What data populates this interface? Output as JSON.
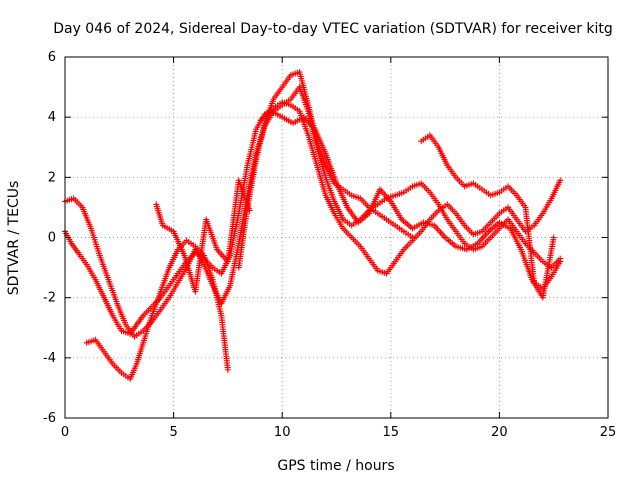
{
  "chart_data": {
    "type": "scatter",
    "title": "Day 046 of 2024, Sidereal Day-to-day VTEC variation (SDTVAR) for receiver kitg",
    "xlabel": "GPS time / hours",
    "ylabel": "SDTVAR / TECUs",
    "xlim": [
      0,
      25
    ],
    "ylim": [
      -6,
      6
    ],
    "xticks": [
      0,
      5,
      10,
      15,
      20,
      25
    ],
    "yticks": [
      -6,
      -4,
      -2,
      0,
      2,
      4,
      6
    ],
    "grid": true,
    "marker": "+",
    "color": "#ff0000",
    "series": [
      {
        "x": [
          0.0,
          0.3,
          0.6,
          1.0,
          1.4,
          1.8,
          2.2,
          2.6,
          3.0,
          3.3,
          3.6,
          4.0,
          4.4,
          4.8,
          5.2,
          5.6,
          6.0,
          6.4,
          6.8,
          7.2,
          7.6,
          8.0,
          8.4,
          8.8,
          9.2,
          9.6,
          10.0,
          10.4,
          10.8,
          11.2,
          11.6,
          12.0,
          12.4,
          12.8,
          13.2,
          13.6,
          14.0,
          14.4,
          14.8,
          15.2,
          15.6,
          16.0,
          16.4,
          16.8,
          17.2,
          17.6,
          18.0,
          18.4,
          18.8,
          19.2,
          19.6,
          20.0,
          20.4,
          20.8,
          21.2,
          21.6,
          22.0,
          22.4,
          22.8
        ],
        "y": [
          0.2,
          -0.2,
          -0.5,
          -0.9,
          -1.4,
          -2.0,
          -2.6,
          -3.1,
          -3.2,
          -2.9,
          -2.6,
          -2.3,
          -2.0,
          -1.6,
          -1.2,
          -0.8,
          -0.5,
          -0.7,
          -1.0,
          -1.2,
          -0.6,
          0.8,
          2.4,
          3.6,
          4.1,
          4.3,
          4.5,
          4.4,
          4.2,
          3.4,
          2.4,
          1.4,
          0.8,
          0.3,
          0.0,
          -0.3,
          -0.7,
          -1.1,
          -1.2,
          -0.8,
          -0.4,
          -0.1,
          0.2,
          0.6,
          0.9,
          1.1,
          0.8,
          0.4,
          0.1,
          0.2,
          0.5,
          0.8,
          1.0,
          0.6,
          0.2,
          0.4,
          0.8,
          1.3,
          1.9
        ]
      },
      {
        "x": [
          0.0,
          0.4,
          0.8,
          1.2,
          1.6,
          2.0,
          2.4,
          2.8,
          3.2,
          3.6,
          4.0,
          4.4,
          4.8,
          5.2,
          5.6,
          6.0,
          6.4,
          6.8,
          7.2,
          7.6,
          8.0,
          8.4,
          8.8,
          9.2,
          9.6,
          10.0,
          10.4,
          10.8,
          11.2,
          11.6,
          12.0,
          12.4,
          12.8,
          13.2,
          13.6,
          14.0,
          14.4,
          14.8,
          15.2,
          15.6,
          16.0,
          16.4,
          16.8,
          17.2,
          17.6,
          18.0,
          18.4,
          18.8,
          19.2,
          19.6,
          20.0,
          20.4,
          20.8,
          21.2,
          21.6,
          22.0,
          22.4,
          22.8
        ],
        "y": [
          1.2,
          1.3,
          1.0,
          0.3,
          -0.6,
          -1.4,
          -2.2,
          -2.9,
          -3.3,
          -3.1,
          -2.8,
          -2.4,
          -2.0,
          -1.5,
          -1.0,
          -0.4,
          -0.9,
          -1.6,
          -2.2,
          -1.6,
          -0.2,
          1.4,
          2.8,
          3.7,
          4.2,
          4.4,
          4.6,
          5.0,
          4.2,
          3.0,
          2.0,
          1.2,
          0.6,
          0.4,
          0.6,
          0.9,
          1.1,
          1.3,
          1.4,
          1.5,
          1.7,
          1.8,
          1.5,
          1.1,
          0.6,
          0.2,
          -0.2,
          -0.4,
          -0.3,
          0.0,
          0.3,
          0.6,
          0.2,
          -0.2,
          -0.5,
          -0.8,
          -1.0,
          -0.7
        ]
      },
      {
        "x": [
          1.0,
          1.4,
          1.8,
          2.2,
          2.6,
          3.0,
          3.3,
          3.6,
          4.0,
          4.4,
          4.8,
          5.2,
          5.6,
          6.0,
          6.4,
          6.8,
          7.2,
          7.5,
          8.0,
          8.4,
          8.8,
          9.2,
          9.6,
          10.0,
          10.4,
          10.8,
          11.2,
          11.6,
          12.0,
          12.4,
          12.8,
          13.2,
          13.6,
          14.0,
          14.4,
          14.8,
          15.2,
          15.6,
          16.0,
          16.4,
          16.8,
          17.2,
          17.6,
          18.0,
          18.4,
          18.8,
          19.2,
          19.6,
          20.0,
          20.4,
          20.8,
          21.2,
          21.6,
          22.0,
          22.4,
          22.8
        ],
        "y": [
          -3.5,
          -3.4,
          -3.8,
          -4.2,
          -4.5,
          -4.7,
          -4.2,
          -3.5,
          -2.6,
          -1.8,
          -1.0,
          -0.4,
          -0.1,
          -0.3,
          -0.6,
          -1.4,
          -2.6,
          -4.4,
          -1.0,
          1.0,
          2.6,
          3.8,
          4.6,
          5.0,
          5.4,
          5.5,
          4.4,
          3.2,
          2.4,
          1.8,
          1.6,
          1.4,
          1.3,
          1.0,
          0.8,
          0.6,
          0.4,
          0.2,
          0.0,
          3.2,
          3.4,
          3.0,
          2.4,
          2.0,
          1.7,
          1.8,
          1.6,
          1.4,
          1.5,
          1.7,
          1.4,
          1.0,
          -1.5,
          -1.7,
          -1.3,
          -0.8
        ]
      },
      {
        "x": [
          4.2,
          4.5,
          5.0,
          5.5,
          6.0,
          6.5,
          7.0,
          7.5,
          8.0,
          8.5,
          9.0,
          9.5,
          10.0,
          10.5,
          11.0,
          11.5,
          12.0,
          12.5,
          13.0,
          13.5,
          14.0,
          14.5,
          15.0,
          15.5,
          16.0,
          16.5,
          17.0,
          17.5,
          18.0,
          18.5,
          19.0,
          19.5,
          20.0,
          20.5,
          21.0,
          21.5,
          22.0,
          22.5
        ],
        "y": [
          1.1,
          0.4,
          0.2,
          -0.6,
          -1.8,
          0.6,
          -0.4,
          -0.8,
          1.9,
          0.9,
          3.9,
          4.2,
          4.0,
          3.8,
          4.0,
          3.6,
          2.8,
          1.8,
          1.0,
          0.5,
          0.8,
          1.6,
          1.2,
          0.6,
          0.3,
          0.5,
          0.4,
          0.0,
          -0.3,
          -0.4,
          -0.2,
          0.2,
          0.5,
          0.3,
          -0.4,
          -1.4,
          -2.0,
          0.0
        ]
      }
    ]
  }
}
